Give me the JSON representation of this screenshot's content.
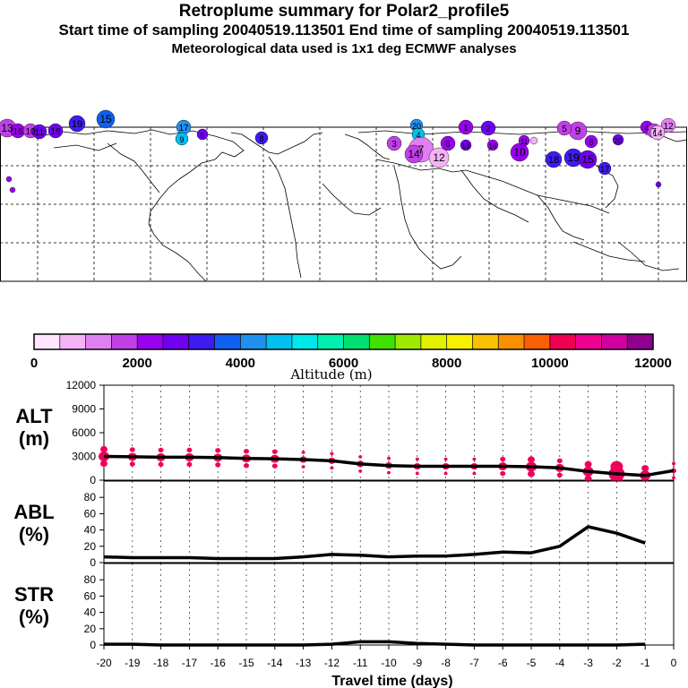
{
  "titles": {
    "line1": "Retroplume summary for Polar2_profile5",
    "line2": "Start time of sampling 20040519.113501     End time of sampling 20040519.113501",
    "line3": "Meteorological data used is 1x1 deg ECMWF analyses"
  },
  "colorbar": {
    "label": "Altitude (m)",
    "ticks": [
      "0",
      "2000",
      "4000",
      "6000",
      "8000",
      "10000",
      "12000"
    ],
    "colors": [
      "#ffe6ff",
      "#f5b3f5",
      "#e080f0",
      "#c040e8",
      "#9a00f0",
      "#7000f0",
      "#3c1cf0",
      "#1060f0",
      "#2090f0",
      "#00c0f0",
      "#00e8e8",
      "#00f0b0",
      "#00e070",
      "#40e000",
      "#a0e800",
      "#e0f000",
      "#f8f000",
      "#f8c000",
      "#f89000",
      "#f86000",
      "#f00050",
      "#f00090",
      "#d000a0",
      "#900090"
    ]
  },
  "map": {
    "plume_labels": [
      "13",
      "16",
      "10",
      "11",
      "18",
      "19",
      "15",
      "17",
      "9",
      "5",
      "8",
      "20",
      "4",
      "7",
      "12",
      "14",
      "3",
      "6",
      "1",
      "2"
    ]
  },
  "chart_data": [
    {
      "type": "line",
      "panel": "ALT",
      "ylabel_line1": "ALT",
      "ylabel_line2": "(m)",
      "ylim": [
        0,
        12000
      ],
      "yticks": [
        "12000",
        "9000",
        "6000",
        "3000",
        "0"
      ],
      "x": [
        -20,
        -19,
        -18,
        -17,
        -16,
        -15,
        -14,
        -13,
        -12,
        -11,
        -10,
        -9,
        -8,
        -7,
        -6,
        -5,
        -4,
        -3,
        -2,
        -1,
        0
      ],
      "values": [
        3000,
        2950,
        2900,
        2900,
        2850,
        2750,
        2700,
        2600,
        2450,
        2050,
        1850,
        1750,
        1750,
        1750,
        1750,
        1700,
        1550,
        1100,
        800,
        600,
        1200
      ],
      "scatter_color": "#f0005a"
    },
    {
      "type": "line",
      "panel": "ABL",
      "ylabel_line1": "ABL",
      "ylabel_line2": "(%)",
      "ylim": [
        0,
        100
      ],
      "yticks": [
        "80",
        "60",
        "40",
        "20",
        "0"
      ],
      "x": [
        -20,
        -19,
        -18,
        -17,
        -16,
        -15,
        -14,
        -13,
        -12,
        -11,
        -10,
        -9,
        -8,
        -7,
        -6,
        -5,
        -4,
        -3,
        -2,
        -1
      ],
      "values": [
        7,
        6,
        6,
        6,
        5,
        5,
        5,
        7,
        10,
        9,
        7,
        8,
        8,
        10,
        13,
        12,
        20,
        44,
        36,
        24
      ]
    },
    {
      "type": "line",
      "panel": "STR",
      "ylabel_line1": "STR",
      "ylabel_line2": "(%)",
      "ylim": [
        0,
        100
      ],
      "yticks": [
        "80",
        "60",
        "40",
        "20",
        "0"
      ],
      "x": [
        -20,
        -19,
        -18,
        -17,
        -16,
        -15,
        -14,
        -13,
        -12,
        -11,
        -10,
        -9,
        -8,
        -7,
        -6,
        -5,
        -4,
        -3,
        -2,
        -1
      ],
      "values": [
        1,
        1,
        0,
        0,
        0,
        0,
        0,
        0,
        1,
        4,
        4,
        2,
        1,
        0,
        0,
        0,
        0,
        0,
        0,
        1
      ]
    }
  ],
  "xaxis": {
    "label": "Travel time (days)",
    "ticks": [
      "-20",
      "-19",
      "-18",
      "-17",
      "-16",
      "-15",
      "-14",
      "-13",
      "-12",
      "-11",
      "-10",
      "-9",
      "-8",
      "-7",
      "-6",
      "-5",
      "-4",
      "-3",
      "-2",
      "-1",
      "0"
    ]
  }
}
